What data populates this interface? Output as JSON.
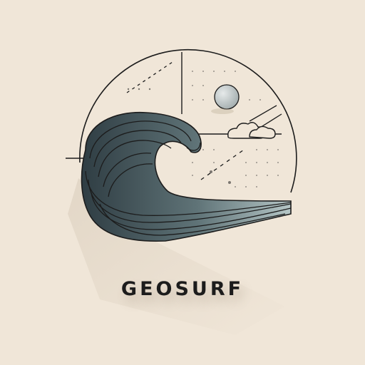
{
  "brand": {
    "name": "GEOSURF"
  },
  "colors": {
    "background": "#f0e6d8",
    "ink": "#1c1c1c",
    "wave_dark": "#3f4f55",
    "wave_light": "#a9bcbd",
    "sun": "#c9cfcf"
  },
  "icons": {
    "logo": "wave-in-circle-emblem",
    "sun": "sun-icon",
    "clouds": "cloud-icon"
  }
}
